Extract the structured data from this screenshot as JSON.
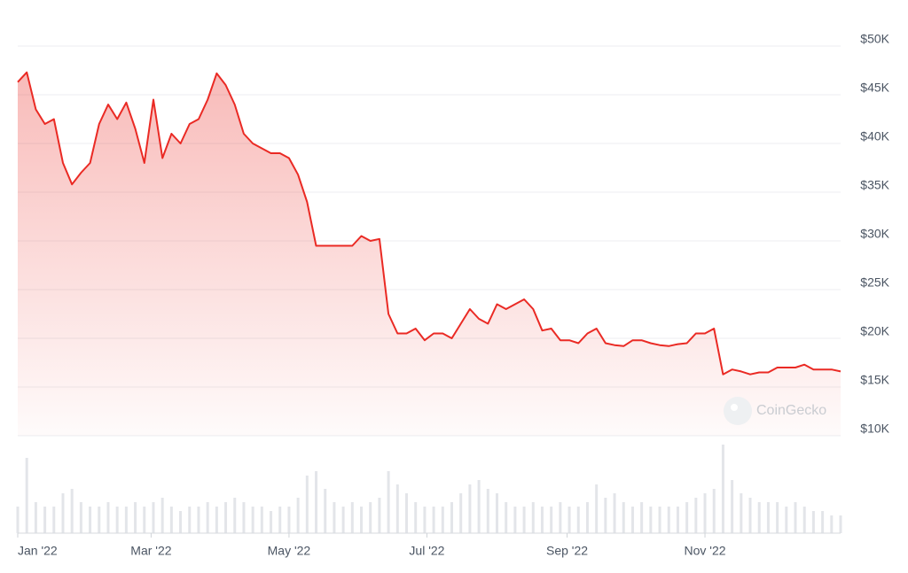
{
  "chart_data": {
    "type": "line",
    "watermark": "CoinGecko",
    "x": [
      0,
      4,
      8,
      12,
      16,
      20,
      24,
      28,
      32,
      36,
      40,
      44,
      48,
      52,
      56,
      60,
      64,
      68,
      72,
      76,
      80,
      84,
      88,
      92,
      96,
      100,
      104,
      108,
      112,
      116,
      120,
      124,
      128,
      132,
      136,
      140,
      144,
      148,
      152,
      156,
      160,
      164,
      168,
      172,
      176,
      180,
      184,
      188,
      192,
      196,
      200,
      204,
      208,
      212,
      216,
      220,
      224,
      228,
      232,
      236,
      240,
      244,
      248,
      252,
      256,
      260,
      264,
      268,
      272,
      276,
      280,
      284,
      288,
      292,
      296,
      300,
      304,
      308,
      312,
      316,
      320,
      324,
      328,
      332,
      336,
      340,
      344,
      348,
      352,
      356,
      360,
      364
    ],
    "series": [
      {
        "color": "#ea2a24",
        "values": [
          46300,
          47300,
          43500,
          42000,
          42500,
          38000,
          35800,
          37000,
          38000,
          42000,
          44000,
          42500,
          44200,
          41500,
          38000,
          44500,
          38500,
          41000,
          40000,
          42000,
          42500,
          44500,
          47200,
          46000,
          44000,
          41000,
          40000,
          39500,
          39000,
          39000,
          38500,
          36800,
          34000,
          29500,
          29500,
          29500,
          29500,
          29500,
          30500,
          30000,
          30200,
          22500,
          20500,
          20500,
          21000,
          19800,
          20500,
          20500,
          20000,
          21500,
          23000,
          22000,
          21500,
          23500,
          23000,
          23500,
          24000,
          23000,
          20800,
          21000,
          19800,
          19800,
          19500,
          20500,
          21000,
          19500,
          19300,
          19200,
          19800,
          19800,
          19500,
          19300,
          19200,
          19400,
          19500,
          20500,
          20500,
          21000,
          16300,
          16800,
          16600,
          16300,
          16500,
          16500,
          17000,
          17000,
          17000,
          17300,
          16800,
          16800,
          16800,
          16600
        ]
      }
    ],
    "volume": {
      "color": "#e3e5e9",
      "ylim": [
        0,
        100
      ],
      "values": [
        30,
        85,
        35,
        30,
        30,
        45,
        50,
        35,
        30,
        30,
        35,
        30,
        30,
        35,
        30,
        35,
        40,
        30,
        25,
        30,
        30,
        35,
        30,
        35,
        40,
        35,
        30,
        30,
        25,
        30,
        30,
        40,
        65,
        70,
        50,
        35,
        30,
        35,
        30,
        35,
        40,
        70,
        55,
        45,
        35,
        30,
        30,
        30,
        35,
        45,
        55,
        60,
        50,
        45,
        35,
        30,
        30,
        35,
        30,
        30,
        35,
        30,
        30,
        35,
        55,
        40,
        45,
        35,
        30,
        35,
        30,
        30,
        30,
        30,
        35,
        40,
        45,
        50,
        100,
        60,
        45,
        40,
        35,
        35,
        35,
        30,
        35,
        30,
        25,
        25,
        20,
        20
      ]
    },
    "xlim": [
      0,
      364
    ],
    "xticks": [
      {
        "value": 0,
        "label": "Jan '22"
      },
      {
        "value": 59,
        "label": "Mar '22"
      },
      {
        "value": 120,
        "label": "May '22"
      },
      {
        "value": 181,
        "label": "Jul '22"
      },
      {
        "value": 243,
        "label": "Sep '22"
      },
      {
        "value": 304,
        "label": "Nov '22"
      }
    ],
    "ylim": [
      10000,
      50000
    ],
    "yticks": [
      {
        "value": 10000,
        "label": "$10K"
      },
      {
        "value": 15000,
        "label": "$15K"
      },
      {
        "value": 20000,
        "label": "$20K"
      },
      {
        "value": 25000,
        "label": "$25K"
      },
      {
        "value": 30000,
        "label": "$30K"
      },
      {
        "value": 35000,
        "label": "$35K"
      },
      {
        "value": 40000,
        "label": "$40K"
      },
      {
        "value": 45000,
        "label": "$45K"
      },
      {
        "value": 50000,
        "label": "$50K"
      }
    ],
    "grid": true
  }
}
